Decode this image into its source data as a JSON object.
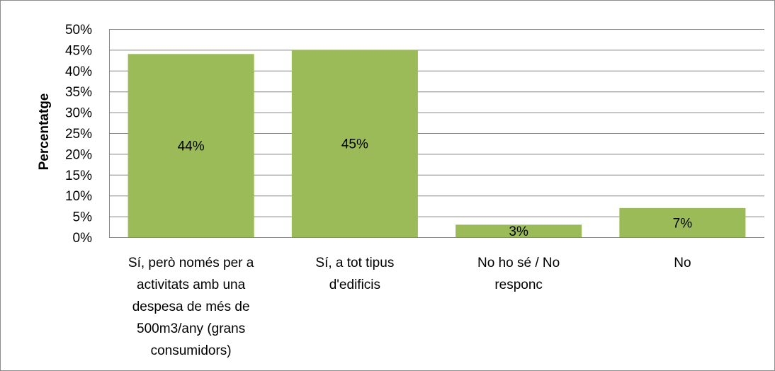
{
  "chart_data": {
    "type": "bar",
    "title": "",
    "xlabel": "",
    "ylabel": "Percentatge",
    "ylim": [
      0,
      50
    ],
    "y_tick_step": 5,
    "y_tick_suffix": "%",
    "grid": true,
    "legend": "none",
    "bar_color": "#9bbb59",
    "gridline_color": "#878787",
    "categories": [
      [
        "Sí, però només per a",
        "activitats amb una",
        "despesa de més de",
        "500m3/any (grans",
        "consumidors)"
      ],
      [
        "Sí, a tot tipus",
        "d'edificis"
      ],
      [
        "No ho sé / No",
        "responc"
      ],
      [
        "No"
      ]
    ],
    "values": [
      44,
      45,
      3,
      7
    ],
    "data_labels": [
      "44%",
      "45%",
      "3%",
      "7%"
    ]
  }
}
